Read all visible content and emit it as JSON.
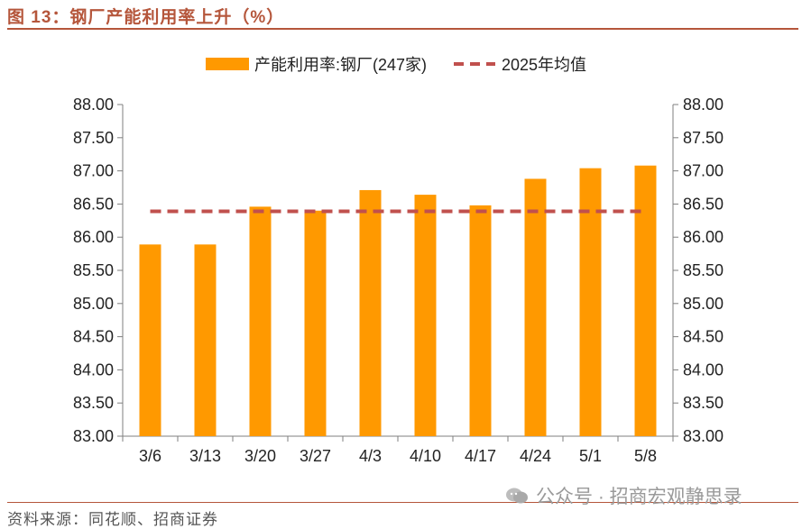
{
  "header": {
    "title": "图 13：钢厂产能利用率上升（%）"
  },
  "footer": {
    "source": "资料来源：同花顺、招商证券",
    "watermark": "公众号 · 招商宏观静思录"
  },
  "chart_data": {
    "type": "bar",
    "categories": [
      "3/6",
      "3/13",
      "3/20",
      "3/27",
      "4/3",
      "4/10",
      "4/17",
      "4/24",
      "5/1",
      "5/8"
    ],
    "series": [
      {
        "name": "产能利用率:钢厂(247家)",
        "type": "bar",
        "color": "#FF9900",
        "values": [
          85.89,
          85.89,
          86.46,
          86.4,
          86.71,
          86.64,
          86.48,
          86.88,
          87.04,
          87.08
        ]
      },
      {
        "name": "2025年均值",
        "type": "line",
        "style": "dashed",
        "color": "#C0504D",
        "values": [
          86.39,
          86.39,
          86.39,
          86.39,
          86.39,
          86.39,
          86.39,
          86.39,
          86.39,
          86.39
        ]
      }
    ],
    "ylim": [
      83.0,
      88.0
    ],
    "yticks": [
      "83.00",
      "83.50",
      "84.00",
      "84.50",
      "85.00",
      "85.50",
      "86.00",
      "86.50",
      "87.00",
      "87.50",
      "88.00"
    ],
    "secondary_yticks": [
      "83.00",
      "83.50",
      "84.00",
      "84.50",
      "85.00",
      "85.50",
      "86.00",
      "86.50",
      "87.00",
      "87.50",
      "88.00"
    ],
    "grid": false,
    "legend": "top-center"
  }
}
